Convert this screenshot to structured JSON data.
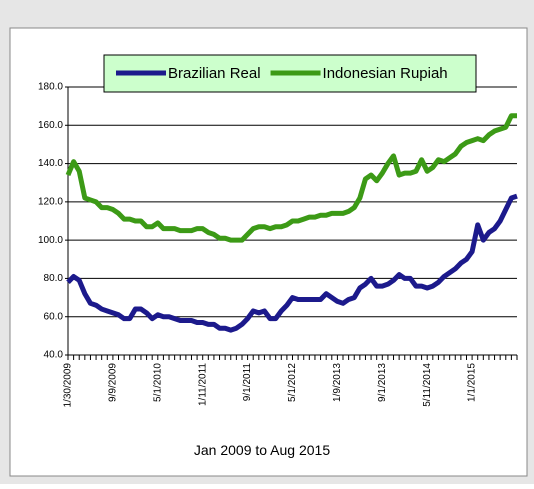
{
  "chart_data": {
    "type": "line",
    "x_label": "Jan 2009 to Aug 2015",
    "categories": [
      "1/30/2009",
      null,
      null,
      null,
      null,
      null,
      null,
      null,
      "9/9/2009",
      null,
      null,
      null,
      null,
      null,
      null,
      null,
      "5/1/2010",
      null,
      null,
      null,
      null,
      null,
      null,
      null,
      "1/11/2011",
      null,
      null,
      null,
      null,
      null,
      null,
      null,
      "9/1/2011",
      null,
      null,
      null,
      null,
      null,
      null,
      null,
      "5/1/2012",
      null,
      null,
      null,
      null,
      null,
      null,
      null,
      "1/9/2013",
      null,
      null,
      null,
      null,
      null,
      null,
      null,
      "9/1/2013",
      null,
      null,
      null,
      null,
      null,
      null,
      null,
      "5/11/2014",
      null,
      null,
      null,
      null,
      null,
      null,
      null,
      "1/1/2015",
      null,
      null,
      null,
      null,
      null,
      null,
      null,
      null
    ],
    "series": [
      {
        "name": "Brazilian Real",
        "color": "#1c1a8c",
        "values": [
          78,
          81,
          79,
          72,
          67,
          66,
          64,
          63,
          62,
          61,
          59,
          59,
          64,
          64,
          62,
          59,
          61,
          60,
          60,
          59,
          58,
          58,
          58,
          57,
          57,
          56,
          56,
          54,
          54,
          53,
          54,
          56,
          59,
          63,
          62,
          63,
          59,
          59,
          63,
          66,
          70,
          69,
          69,
          69,
          69,
          69,
          72,
          70,
          68,
          67,
          69,
          70,
          75,
          77,
          80,
          76,
          76,
          77,
          79,
          82,
          80,
          80,
          76,
          76,
          75,
          76,
          78,
          81,
          83,
          85,
          88,
          90,
          94,
          108,
          100,
          104,
          106,
          110,
          116,
          122,
          123
        ]
      },
      {
        "name": "Indonesian Rupiah",
        "color": "#3c9a16",
        "values": [
          134,
          141,
          136,
          122,
          121,
          120,
          117,
          117,
          116,
          114,
          111,
          111,
          110,
          110,
          107,
          107,
          109,
          106,
          106,
          106,
          105,
          105,
          105,
          106,
          106,
          104,
          103,
          101,
          101,
          100,
          100,
          100,
          103,
          106,
          107,
          107,
          106,
          107,
          107,
          108,
          110,
          110,
          111,
          112,
          112,
          113,
          113,
          114,
          114,
          114,
          115,
          117,
          122,
          132,
          134,
          131,
          135,
          140,
          144,
          134,
          135,
          135,
          136,
          142,
          136,
          138,
          142,
          141,
          143,
          145,
          149,
          151,
          152,
          153,
          152,
          155,
          157,
          158,
          159,
          165,
          165
        ]
      }
    ],
    "ylim": [
      40,
      180
    ],
    "yticks": [
      {
        "value": 40,
        "label": "40.0"
      },
      {
        "value": 60,
        "label": "60.0"
      },
      {
        "value": 80,
        "label": "80.0"
      },
      {
        "value": 100,
        "label": "100.0"
      },
      {
        "value": 120,
        "label": "120.0"
      },
      {
        "value": 140,
        "label": "140.0"
      },
      {
        "value": 160,
        "label": "160.0"
      },
      {
        "value": 180,
        "label": "180.0"
      }
    ],
    "grid": true,
    "legend": "top"
  }
}
